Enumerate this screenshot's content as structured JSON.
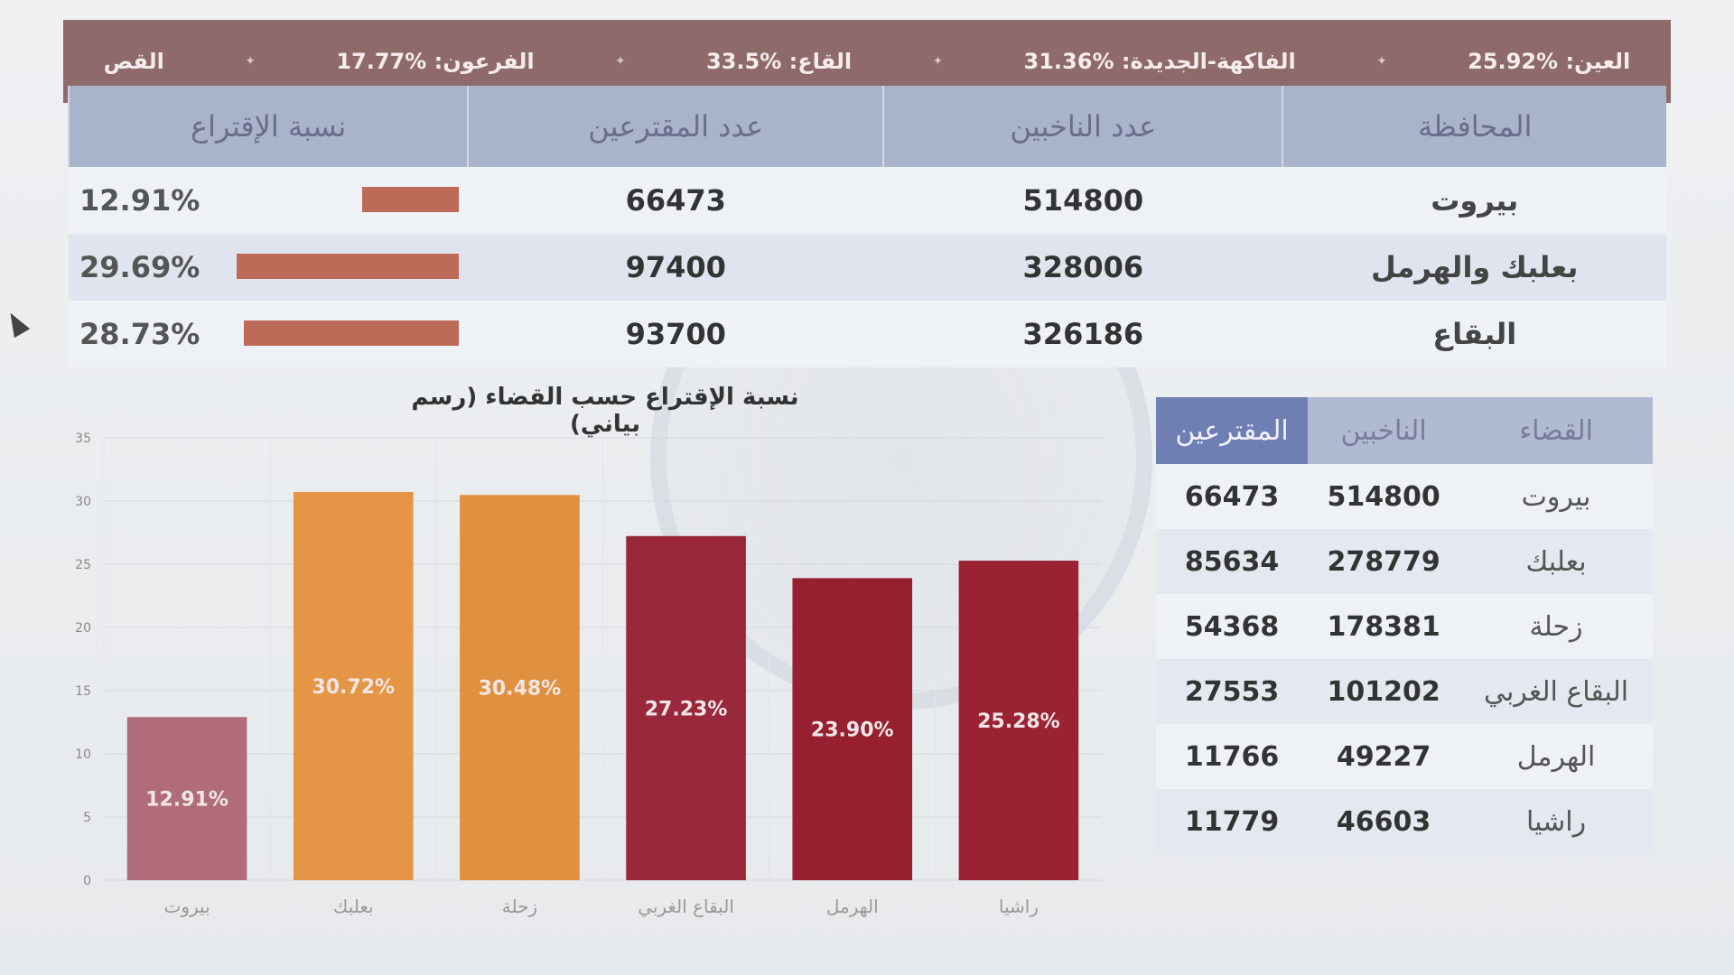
{
  "ticker": [
    {
      "label": "العين: %25.92"
    },
    {
      "label": "الفاكهة-الجديدة: %31.36"
    },
    {
      "label": "القاع: %33.5"
    },
    {
      "label": "الفرعون: %17.77"
    },
    {
      "label": "القص"
    }
  ],
  "governorates": {
    "headers": [
      "المحافظة",
      "عدد الناخبين",
      "عدد المقترعين",
      "نسبة الإقتراع"
    ],
    "rows": [
      {
        "name": "بيروت",
        "voters": "514800",
        "votes": "66473",
        "pct_label": "12.91%",
        "pct": 12.91
      },
      {
        "name": "بعلبك والهرمل",
        "voters": "328006",
        "votes": "97400",
        "pct_label": "29.69%",
        "pct": 29.69
      },
      {
        "name": "البقاع",
        "voters": "326186",
        "votes": "93700",
        "pct_label": "28.73%",
        "pct": 28.73
      }
    ]
  },
  "chart": {
    "title": "نسبة الإقتراع حسب القضاء (رسم بياني)"
  },
  "chart_data": {
    "type": "bar",
    "categories": [
      "بيروت",
      "بعلبك",
      "زحلة",
      "البقاع الغربي",
      "الهرمل",
      "راشيا"
    ],
    "values": [
      12.91,
      30.72,
      30.48,
      27.23,
      23.9,
      25.28
    ],
    "value_labels": [
      "12.91%",
      "30.72%",
      "30.48%",
      "27.23%",
      "23.90%",
      "25.28%"
    ],
    "colors": [
      "#b06c7a",
      "#e49545",
      "#e0913f",
      "#98283a",
      "#961f30",
      "#9a2232"
    ],
    "ylim": [
      0,
      35
    ],
    "yticks": [
      0,
      5,
      10,
      15,
      20,
      25,
      30,
      35
    ],
    "grid": true,
    "title": "نسبة الإقتراع حسب القضاء (رسم بياني)"
  },
  "districts": {
    "headers": [
      "القضاء",
      "الناخبين",
      "المقترعين"
    ],
    "rows": [
      {
        "name": "بيروت",
        "voters": "514800",
        "votes": "66473"
      },
      {
        "name": "بعلبك",
        "voters": "278779",
        "votes": "85634"
      },
      {
        "name": "زحلة",
        "voters": "178381",
        "votes": "54368"
      },
      {
        "name": "البقاع الغربي",
        "voters": "101202",
        "votes": "27553"
      },
      {
        "name": "الهرمل",
        "voters": "49227",
        "votes": "11766"
      },
      {
        "name": "راشيا",
        "voters": "46603",
        "votes": "11779"
      }
    ]
  }
}
